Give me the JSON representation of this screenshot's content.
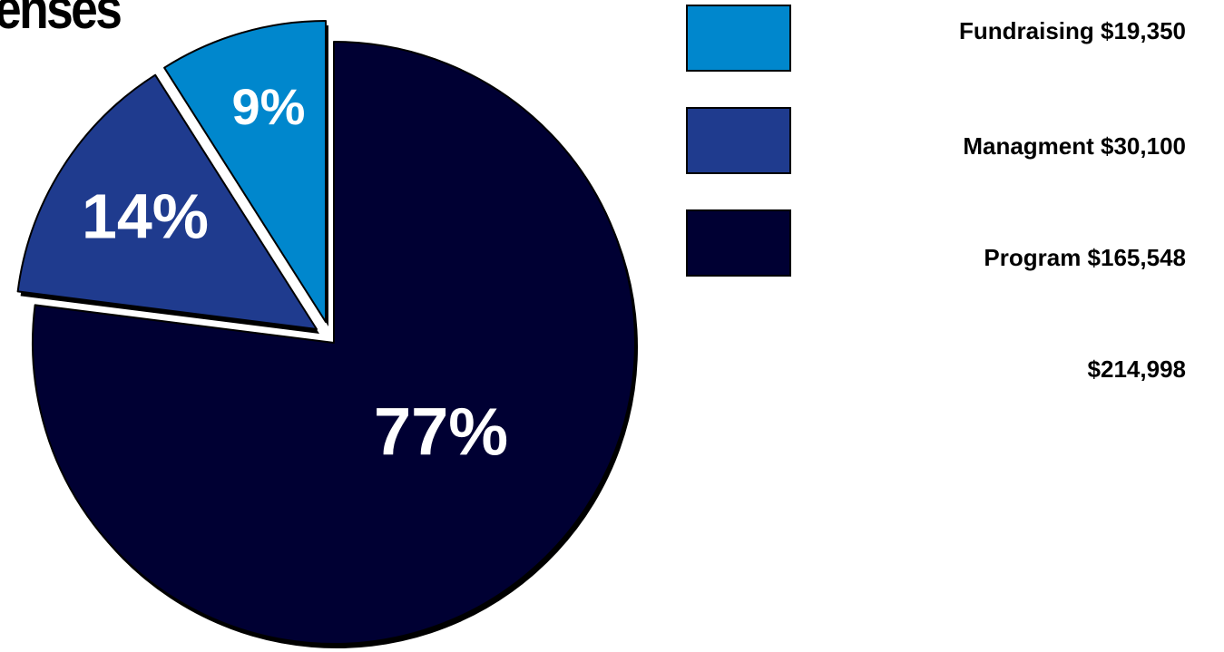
{
  "chart_data": {
    "type": "pie",
    "title": "enses",
    "slices": [
      {
        "name": "Fundraising",
        "legend_label": "Fundraising $19,350",
        "value": 19350,
        "percent_label": "9%",
        "color": "#0087CD"
      },
      {
        "name": "Managment",
        "legend_label": "Managment $30,100",
        "value": 30100,
        "percent_label": "14%",
        "color": "#1F3B8E"
      },
      {
        "name": "Program",
        "legend_label": "Program $165,548",
        "value": 165548,
        "percent_label": "77%",
        "color": "#000033"
      }
    ],
    "total_label": "$214,998",
    "legend_position": "right",
    "exploded": true
  }
}
